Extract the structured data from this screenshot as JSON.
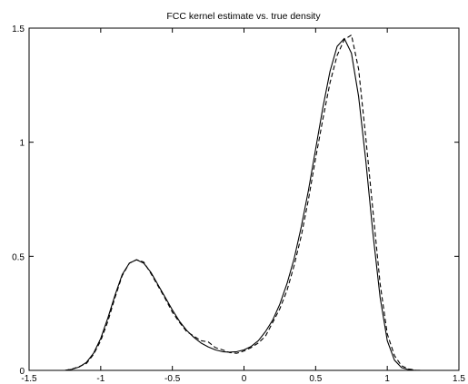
{
  "chart_data": {
    "type": "line",
    "title": "FCC kernel estimate vs. true density",
    "xlabel": "",
    "ylabel": "",
    "xlim": [
      -1.5,
      1.5
    ],
    "ylim": [
      0,
      1.5
    ],
    "xticks": [
      -1.5,
      -1,
      -0.5,
      0,
      0.5,
      1,
      1.5
    ],
    "xtick_labels": [
      "-1.5",
      "-1",
      "-0.5",
      "0",
      "0.5",
      "1",
      "1.5"
    ],
    "yticks": [
      0,
      0.5,
      1,
      1.5
    ],
    "ytick_labels": [
      "0",
      "0.5",
      "1",
      "1.5"
    ],
    "grid": false,
    "series": [
      {
        "style": "solid",
        "color": "#000000",
        "x": [
          -1.25,
          -1.2,
          -1.15,
          -1.1,
          -1.05,
          -1.0,
          -0.95,
          -0.9,
          -0.85,
          -0.8,
          -0.75,
          -0.7,
          -0.65,
          -0.6,
          -0.55,
          -0.5,
          -0.45,
          -0.4,
          -0.35,
          -0.3,
          -0.25,
          -0.2,
          -0.15,
          -0.1,
          -0.05,
          0.0,
          0.05,
          0.1,
          0.15,
          0.2,
          0.25,
          0.3,
          0.35,
          0.4,
          0.45,
          0.5,
          0.55,
          0.6,
          0.65,
          0.7,
          0.75,
          0.8,
          0.85,
          0.9,
          0.95,
          1.0,
          1.05,
          1.1,
          1.15,
          1.2
        ],
        "y": [
          0.0,
          0.005,
          0.015,
          0.035,
          0.075,
          0.14,
          0.23,
          0.33,
          0.42,
          0.47,
          0.485,
          0.47,
          0.43,
          0.375,
          0.32,
          0.265,
          0.215,
          0.175,
          0.145,
          0.12,
          0.103,
          0.09,
          0.082,
          0.08,
          0.082,
          0.09,
          0.105,
          0.13,
          0.17,
          0.22,
          0.29,
          0.38,
          0.49,
          0.63,
          0.79,
          0.97,
          1.15,
          1.31,
          1.42,
          1.455,
          1.39,
          1.2,
          0.92,
          0.6,
          0.32,
          0.13,
          0.045,
          0.012,
          0.003,
          0.0
        ]
      },
      {
        "style": "dashed",
        "color": "#000000",
        "x": [
          -1.25,
          -1.2,
          -1.15,
          -1.1,
          -1.05,
          -1.0,
          -0.95,
          -0.9,
          -0.85,
          -0.8,
          -0.75,
          -0.7,
          -0.65,
          -0.6,
          -0.55,
          -0.5,
          -0.45,
          -0.4,
          -0.35,
          -0.3,
          -0.25,
          -0.2,
          -0.15,
          -0.1,
          -0.05,
          0.0,
          0.05,
          0.1,
          0.15,
          0.2,
          0.25,
          0.3,
          0.35,
          0.4,
          0.45,
          0.5,
          0.55,
          0.6,
          0.65,
          0.7,
          0.75,
          0.8,
          0.85,
          0.9,
          0.95,
          1.0,
          1.05,
          1.1,
          1.15,
          1.2,
          1.25
        ],
        "y": [
          0.0,
          0.006,
          0.017,
          0.03,
          0.07,
          0.13,
          0.215,
          0.32,
          0.415,
          0.47,
          0.485,
          0.475,
          0.425,
          0.37,
          0.315,
          0.255,
          0.21,
          0.17,
          0.15,
          0.13,
          0.125,
          0.1,
          0.09,
          0.078,
          0.075,
          0.085,
          0.1,
          0.12,
          0.15,
          0.21,
          0.27,
          0.35,
          0.46,
          0.59,
          0.75,
          0.93,
          1.1,
          1.26,
          1.38,
          1.45,
          1.47,
          1.32,
          1.02,
          0.7,
          0.38,
          0.16,
          0.065,
          0.02,
          0.006,
          0.001,
          0.0
        ]
      }
    ]
  }
}
